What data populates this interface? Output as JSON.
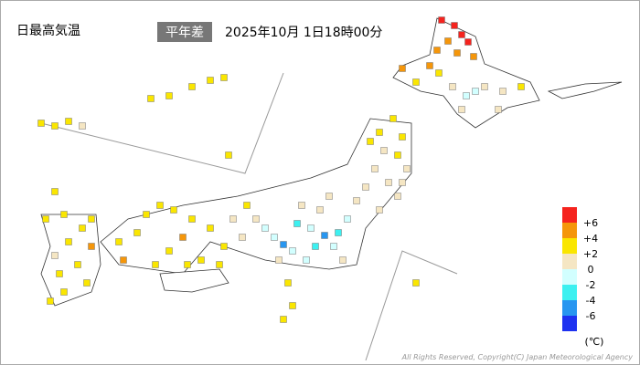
{
  "header": {
    "title": "日最高気温",
    "badge": "平年差",
    "datetime": "2025年10月 1日18時00分"
  },
  "legend": {
    "colors": [
      "#f5231e",
      "#f5960a",
      "#fae600",
      "#f5e6c3",
      "#d2ffff",
      "#3cf0f0",
      "#2896f0",
      "#1e32f0"
    ],
    "boundaries": [
      {
        "value": 6,
        "label": "+6"
      },
      {
        "value": 4,
        "label": "+4"
      },
      {
        "value": 2,
        "label": "+2"
      },
      0,
      -2,
      -4,
      -6
    ],
    "unit": "(℃)"
  },
  "anomalies": [
    7,
    7,
    7,
    6.5,
    5,
    4.5,
    5,
    4.5,
    4,
    4,
    3,
    3,
    1,
    -1,
    -1.5,
    1,
    1,
    0.5,
    2,
    1,
    3,
    3.5,
    3,
    1.5,
    2,
    1,
    1.5,
    1,
    0.5,
    1.5,
    1,
    0.5,
    2.5,
    1,
    -1,
    -2.5,
    -5,
    -2,
    -2.5,
    -4.5,
    -1.5,
    -1,
    -2,
    -3,
    -1,
    0.5,
    -1,
    0.5,
    0.5,
    0.5,
    1,
    1.5,
    2.5,
    1.5,
    1,
    2,
    3,
    3,
    3,
    2.5,
    3.5,
    4.5,
    3,
    2.5,
    3,
    3.5,
    5,
    3,
    2.5,
    2,
    3,
    3,
    2.5,
    3,
    4.5,
    1.5,
    3,
    2.5,
    3,
    2,
    3,
    3,
    3,
    3,
    2.5,
    1,
    2.5,
    3,
    3,
    3,
    2,
    3,
    2,
    3,
    2.5,
    2,
    3
  ],
  "footer": {
    "copyright": "All Rights Reserved, Copyright(C) Japan Meteorological Agency"
  }
}
